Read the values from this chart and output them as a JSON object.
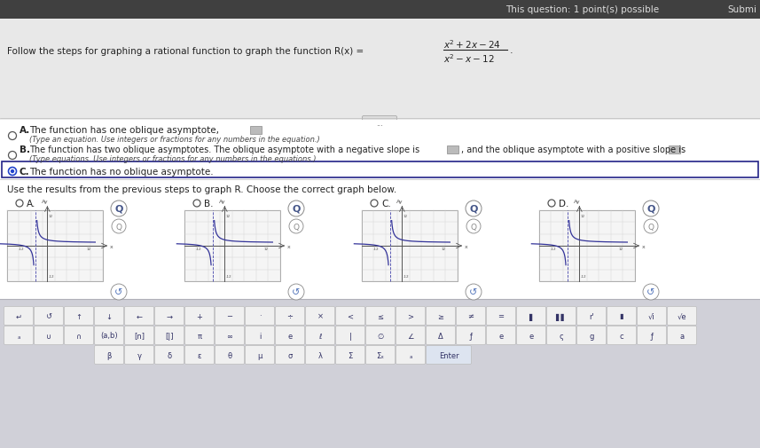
{
  "title_top_right": "This question: 1 point(s) possible",
  "submit_text": "Submi",
  "main_text": "Follow the steps for graphing a rational function to graph the function R(x) =",
  "fraction_num": "x² +2x−24",
  "fraction_den": "x² −x−12",
  "option_A_label": "A.",
  "option_A_text": "The function has one oblique asymptote,",
  "option_A_sub": "(Type an equation. Use integers or fractions for any numbers in the equation.)",
  "option_B_label": "B.",
  "option_B_text": "The function has two oblique asymptotes. The oblique asymptote with a negative slope is",
  "option_B_text2": ", and the oblique asymptote with a positive slope is",
  "option_B_sub": "(Type equations. Use integers or fractions for any numbers in the equations.)",
  "option_C_label": "C.",
  "option_C_text": "The function has no oblique asymptote.",
  "option_C_selected": true,
  "graph_label": "Use the results from the previous steps to graph R. Choose the correct graph below.",
  "graph_options": [
    "A.",
    "B.",
    "C.",
    "D."
  ],
  "bg_top": "#e8e8e8",
  "bg_white": "#ffffff",
  "bg_keyboard": "#d0d0d8",
  "text_color": "#111111",
  "text_color_dark": "#222222",
  "subtext_color": "#444444",
  "radio_color": "#555555",
  "selected_dot_color": "#2244cc",
  "highlight_bg": "#ffffff",
  "highlight_border": "#222288",
  "top_bar_bg": "#404040",
  "top_text_color": "#dddddd",
  "key_bg": "#f0f0f0",
  "key_border": "#bbbbbb",
  "key_text_color": "#333366",
  "graph_line_color": "#333399",
  "graph_asym_color": "#4444aa",
  "graph_grid_color": "#cccccc",
  "graph_axis_color": "#555555",
  "ellipsis_bg": "#dddddd",
  "ellipsis_border": "#aaaaaa"
}
